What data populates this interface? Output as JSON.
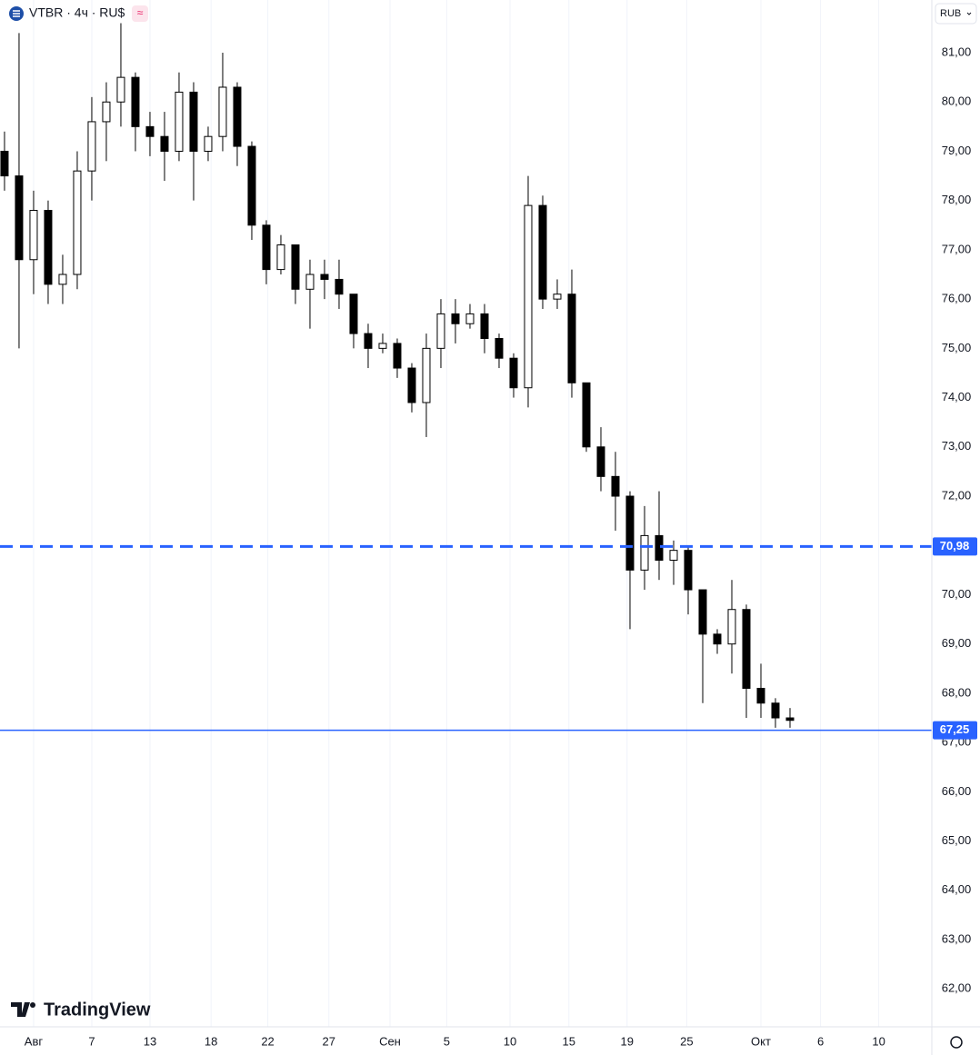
{
  "chart_data": {
    "type": "candlestick",
    "title": "VTBR · 4ч · RU$",
    "currency": "RUB",
    "brand": "TradingView",
    "x": [
      -2,
      -1,
      0,
      1,
      2,
      3,
      4,
      5,
      6,
      7,
      8,
      9,
      10,
      11,
      12,
      13,
      14,
      15,
      16,
      17,
      18,
      19,
      20,
      21,
      22,
      23,
      24,
      25,
      26,
      27,
      28,
      29,
      30,
      31,
      32,
      33,
      34,
      35,
      36,
      37,
      38,
      39,
      40,
      41,
      42,
      43,
      44,
      45,
      46,
      47,
      48,
      49,
      50,
      51,
      52
    ],
    "open": [
      79.0,
      78.5,
      76.8,
      77.8,
      76.3,
      76.5,
      78.6,
      79.6,
      80.0,
      80.5,
      79.5,
      79.3,
      79.0,
      80.2,
      79.0,
      79.3,
      80.3,
      79.1,
      77.5,
      76.6,
      77.1,
      76.2,
      76.5,
      76.4,
      76.1,
      75.3,
      75.0,
      75.1,
      74.6,
      73.9,
      75.0,
      75.7,
      75.5,
      75.7,
      75.2,
      74.8,
      74.2,
      77.9,
      76.0,
      76.1,
      74.3,
      73.0,
      72.4,
      72.0,
      70.5,
      71.2,
      70.7,
      70.9,
      70.1,
      69.2,
      69.0,
      69.7,
      68.1,
      67.8,
      67.5
    ],
    "high": [
      79.4,
      81.4,
      78.2,
      78.0,
      76.9,
      79.0,
      80.1,
      80.4,
      81.6,
      80.6,
      79.8,
      79.8,
      80.6,
      80.4,
      79.5,
      81.0,
      80.4,
      79.2,
      77.6,
      77.3,
      77.1,
      76.8,
      76.8,
      76.8,
      76.1,
      75.5,
      75.3,
      75.2,
      74.7,
      75.3,
      76.0,
      76.0,
      75.9,
      75.9,
      75.3,
      74.9,
      78.5,
      78.1,
      76.4,
      76.6,
      74.3,
      73.4,
      72.9,
      72.1,
      71.8,
      72.1,
      71.1,
      71.0,
      70.1,
      69.3,
      70.3,
      69.8,
      68.6,
      67.9,
      67.7
    ],
    "low": [
      78.2,
      75.0,
      76.1,
      75.9,
      75.9,
      76.2,
      78.0,
      78.8,
      79.5,
      79.0,
      78.9,
      78.4,
      78.8,
      78.0,
      78.8,
      79.0,
      78.7,
      77.2,
      76.3,
      76.5,
      75.9,
      75.4,
      76.0,
      75.8,
      75.0,
      74.6,
      74.9,
      74.4,
      73.7,
      73.2,
      74.6,
      75.1,
      75.4,
      74.9,
      74.6,
      74.0,
      73.8,
      75.8,
      75.8,
      74.0,
      72.9,
      72.1,
      71.3,
      69.3,
      70.1,
      70.3,
      70.2,
      69.6,
      67.8,
      68.8,
      68.4,
      67.5,
      67.5,
      67.3,
      67.3
    ],
    "close": [
      78.5,
      76.8,
      77.8,
      76.3,
      76.5,
      78.6,
      79.6,
      80.0,
      80.5,
      79.5,
      79.3,
      79.0,
      80.2,
      79.0,
      79.3,
      80.3,
      79.1,
      77.5,
      76.6,
      77.1,
      76.2,
      76.5,
      76.4,
      76.1,
      75.3,
      75.0,
      75.1,
      74.6,
      73.9,
      75.0,
      75.7,
      75.5,
      75.7,
      75.2,
      74.8,
      74.2,
      77.9,
      76.0,
      76.1,
      74.3,
      73.0,
      72.4,
      72.0,
      70.5,
      71.2,
      70.7,
      70.9,
      70.1,
      69.2,
      69.0,
      69.7,
      68.1,
      67.8,
      67.5,
      67.45
    ],
    "up_color": "#ffffff",
    "down_color": "#000000",
    "wick_color": "#000000",
    "xlim": [
      -2.31,
      61.75
    ],
    "xticks": [
      {
        "value": 0,
        "label": "Авг"
      },
      {
        "value": 4,
        "label": "7"
      },
      {
        "value": 8,
        "label": "13"
      },
      {
        "value": 12.2,
        "label": "18"
      },
      {
        "value": 16.1,
        "label": "22"
      },
      {
        "value": 20.3,
        "label": "27"
      },
      {
        "value": 24.5,
        "label": "Сен"
      },
      {
        "value": 28.4,
        "label": "5"
      },
      {
        "value": 32.75,
        "label": "10"
      },
      {
        "value": 36.8,
        "label": "15"
      },
      {
        "value": 40.8,
        "label": "19"
      },
      {
        "value": 44.9,
        "label": "25"
      },
      {
        "value": 50,
        "label": "Окт"
      },
      {
        "value": 54.1,
        "label": "6"
      },
      {
        "value": 58.1,
        "label": "10"
      }
    ],
    "ylim": [
      61.23,
      82.07
    ],
    "yticks": [
      {
        "value": 62,
        "label": "62,00"
      },
      {
        "value": 63,
        "label": "63,00"
      },
      {
        "value": 64,
        "label": "64,00"
      },
      {
        "value": 65,
        "label": "65,00"
      },
      {
        "value": 66,
        "label": "66,00"
      },
      {
        "value": 67,
        "label": "67,00"
      },
      {
        "value": 68,
        "label": "68,00"
      },
      {
        "value": 69,
        "label": "69,00"
      },
      {
        "value": 70,
        "label": "70,00"
      },
      {
        "value": 71,
        "label": "71,00"
      },
      {
        "value": 72,
        "label": "72,00"
      },
      {
        "value": 73,
        "label": "73,00"
      },
      {
        "value": 74,
        "label": "74,00"
      },
      {
        "value": 75,
        "label": "75,00"
      },
      {
        "value": 76,
        "label": "76,00"
      },
      {
        "value": 77,
        "label": "77,00"
      },
      {
        "value": 78,
        "label": "78,00"
      },
      {
        "value": 79,
        "label": "79,00"
      },
      {
        "value": 80,
        "label": "80,00"
      },
      {
        "value": 81,
        "label": "81,00"
      }
    ],
    "grid": "vertical",
    "hlines": [
      {
        "value": 70.98,
        "label": "70,98",
        "style": "dashed",
        "color": "#2962ff"
      },
      {
        "value": 67.25,
        "label": "67,25",
        "style": "solid",
        "color": "#2962ff"
      }
    ]
  }
}
